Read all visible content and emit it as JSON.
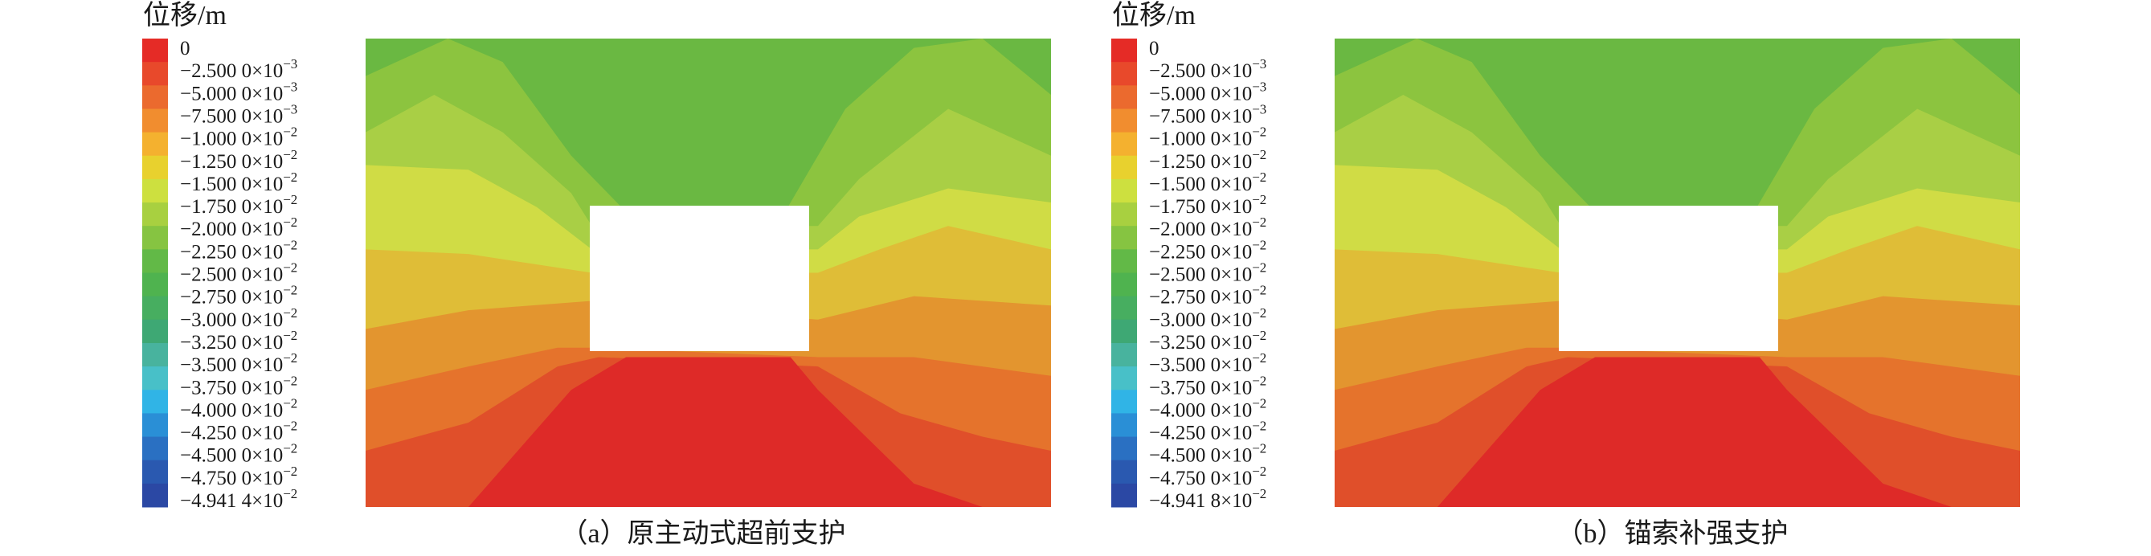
{
  "panels": [
    {
      "legend": {
        "title": "位移/m",
        "labels": [
          {
            "text": "0"
          },
          {
            "text": "−2.500 0×10",
            "exp": "−3"
          },
          {
            "text": "−5.000 0×10",
            "exp": "−3"
          },
          {
            "text": "−7.500 0×10",
            "exp": "−3"
          },
          {
            "text": "−1.000 0×10",
            "exp": "−2"
          },
          {
            "text": "−1.250 0×10",
            "exp": "−2"
          },
          {
            "text": "−1.500 0×10",
            "exp": "−2"
          },
          {
            "text": "−1.750 0×10",
            "exp": "−2"
          },
          {
            "text": "−2.000 0×10",
            "exp": "−2"
          },
          {
            "text": "−2.250 0×10",
            "exp": "−2"
          },
          {
            "text": "−2.500 0×10",
            "exp": "−2"
          },
          {
            "text": "−2.750 0×10",
            "exp": "−2"
          },
          {
            "text": "−3.000 0×10",
            "exp": "−2"
          },
          {
            "text": "−3.250 0×10",
            "exp": "−2"
          },
          {
            "text": "−3.500 0×10",
            "exp": "−2"
          },
          {
            "text": "−3.750 0×10",
            "exp": "−2"
          },
          {
            "text": "−4.000 0×10",
            "exp": "−2"
          },
          {
            "text": "−4.250 0×10",
            "exp": "−2"
          },
          {
            "text": "−4.500 0×10",
            "exp": "−2"
          },
          {
            "text": "−4.750 0×10",
            "exp": "−2"
          },
          {
            "text": "−4.941 4×10",
            "exp": "−2"
          }
        ]
      },
      "caption": "（a）原主动式超前支护"
    },
    {
      "legend": {
        "title": "位移/m",
        "labels": [
          {
            "text": "0"
          },
          {
            "text": "−2.500 0×10",
            "exp": "−3"
          },
          {
            "text": "−5.000 0×10",
            "exp": "−3"
          },
          {
            "text": "−7.500 0×10",
            "exp": "−3"
          },
          {
            "text": "−1.000 0×10",
            "exp": "−2"
          },
          {
            "text": "−1.250 0×10",
            "exp": "−2"
          },
          {
            "text": "−1.500 0×10",
            "exp": "−2"
          },
          {
            "text": "−1.750 0×10",
            "exp": "−2"
          },
          {
            "text": "−2.000 0×10",
            "exp": "−2"
          },
          {
            "text": "−2.250 0×10",
            "exp": "−2"
          },
          {
            "text": "−2.500 0×10",
            "exp": "−2"
          },
          {
            "text": "−2.750 0×10",
            "exp": "−2"
          },
          {
            "text": "−3.000 0×10",
            "exp": "−2"
          },
          {
            "text": "−3.250 0×10",
            "exp": "−2"
          },
          {
            "text": "−3.500 0×10",
            "exp": "−2"
          },
          {
            "text": "−3.750 0×10",
            "exp": "−2"
          },
          {
            "text": "−4.000 0×10",
            "exp": "−2"
          },
          {
            "text": "−4.250 0×10",
            "exp": "−2"
          },
          {
            "text": "−4.500 0×10",
            "exp": "−2"
          },
          {
            "text": "−4.750 0×10",
            "exp": "−2"
          },
          {
            "text": "−4.941 8×10",
            "exp": "−2"
          }
        ]
      },
      "caption": "（b）锚索补强支护"
    }
  ]
}
